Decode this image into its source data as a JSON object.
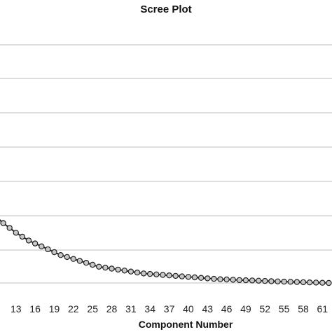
{
  "chart_data": {
    "type": "line",
    "title": "Scree Plot",
    "xlabel": "Component Number",
    "ylabel": "",
    "x_ticks": [
      "13",
      "16",
      "19",
      "22",
      "25",
      "28",
      "31",
      "34",
      "37",
      "40",
      "43",
      "46",
      "49",
      "52",
      "55",
      "58",
      "61"
    ],
    "xlim": [
      10.5,
      62.5
    ],
    "grid": true,
    "legend": "none",
    "colors": {
      "line": "#222222",
      "marker_fill": "#c8c8c8",
      "grid": "#bdbdbd"
    },
    "series": [
      {
        "x": [
          10,
          11,
          12,
          13,
          14,
          15,
          16,
          17,
          18,
          19,
          20,
          21,
          22,
          23,
          24,
          25,
          26,
          27,
          28,
          29,
          30,
          31,
          32,
          33,
          34,
          35,
          36,
          37,
          38,
          39,
          40,
          41,
          42,
          43,
          44,
          45,
          46,
          47,
          48,
          49,
          50,
          51,
          52,
          53,
          54,
          55,
          56,
          57,
          58,
          59,
          60,
          61,
          62
        ],
        "values": [
          0.82,
          0.76,
          0.71,
          0.66,
          0.62,
          0.58,
          0.55,
          0.52,
          0.49,
          0.46,
          0.43,
          0.41,
          0.39,
          0.37,
          0.35,
          0.33,
          0.31,
          0.3,
          0.29,
          0.28,
          0.27,
          0.26,
          0.25,
          0.24,
          0.235,
          0.23,
          0.225,
          0.22,
          0.215,
          0.21,
          0.205,
          0.2,
          0.195,
          0.19,
          0.185,
          0.18,
          0.178,
          0.175,
          0.172,
          0.17,
          0.168,
          0.165,
          0.163,
          0.16,
          0.158,
          0.156,
          0.154,
          0.152,
          0.15,
          0.148,
          0.146,
          0.144,
          0.142
        ]
      }
    ]
  }
}
